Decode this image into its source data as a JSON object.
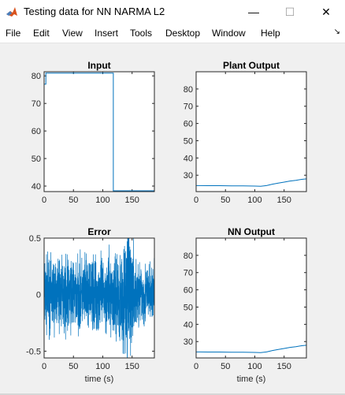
{
  "window": {
    "title": "Testing data for NN NARMA L2",
    "controls": {
      "minimize": "—",
      "maximize": "☐",
      "close": "✕"
    }
  },
  "menu": [
    "File",
    "Edit",
    "View",
    "Insert",
    "Tools",
    "Desktop",
    "Window",
    "Help"
  ],
  "colors": {
    "line": "#0072bd",
    "axes_bg": "#ffffff",
    "figure_bg": "#f0f0f0"
  },
  "chart_data": [
    {
      "type": "line",
      "title": "Input",
      "xlabel": "",
      "ylabel": "",
      "xlim": [
        0,
        188
      ],
      "ylim": [
        38,
        81.5
      ],
      "xticks": [
        0,
        50,
        100,
        150
      ],
      "yticks": [
        40,
        50,
        60,
        70,
        80
      ],
      "series": [
        {
          "x": [
            0,
            3,
            3,
            118,
            118,
            188
          ],
          "y": [
            77,
            77,
            81,
            81,
            38.3,
            38.3
          ]
        }
      ]
    },
    {
      "type": "line",
      "title": "Plant Output",
      "xlabel": "",
      "ylabel": "",
      "xlim": [
        0,
        188
      ],
      "ylim": [
        20.5,
        90
      ],
      "xticks": [
        0,
        50,
        100,
        150
      ],
      "yticks": [
        30,
        40,
        50,
        60,
        70,
        80
      ],
      "series": [
        {
          "x": [
            0,
            20,
            40,
            60,
            80,
            100,
            110,
            120,
            130,
            140,
            150,
            160,
            170,
            180,
            188
          ],
          "y": [
            24,
            23.9,
            23.9,
            23.8,
            23.8,
            23.7,
            23.6,
            24,
            24.8,
            25.4,
            26,
            26.6,
            27,
            27.6,
            27.9
          ]
        }
      ]
    },
    {
      "type": "line",
      "title": "Error",
      "xlabel": "time (s)",
      "ylabel": "",
      "xlim": [
        0,
        188
      ],
      "ylim": [
        -0.56,
        0.5
      ],
      "xticks": [
        0,
        50,
        100,
        150
      ],
      "yticks": [
        -0.5,
        0,
        0.5
      ],
      "series": [
        {
          "noise": true,
          "envelope_x": [
            0,
            100,
            120,
            140,
            145,
            150,
            160,
            188
          ],
          "envelope_amp": [
            0.22,
            0.22,
            0.24,
            0.35,
            0.5,
            0.3,
            0.2,
            0.17
          ]
        }
      ]
    },
    {
      "type": "line",
      "title": "NN Output",
      "xlabel": "time (s)",
      "ylabel": "",
      "xlim": [
        0,
        188
      ],
      "ylim": [
        20.5,
        90
      ],
      "xticks": [
        0,
        50,
        100,
        150
      ],
      "yticks": [
        30,
        40,
        50,
        60,
        70,
        80
      ],
      "series": [
        {
          "x": [
            0,
            20,
            40,
            60,
            80,
            100,
            110,
            120,
            130,
            140,
            150,
            160,
            170,
            180,
            188
          ],
          "y": [
            24,
            23.9,
            23.9,
            23.8,
            23.8,
            23.7,
            23.6,
            24,
            24.8,
            25.4,
            26,
            26.6,
            27,
            27.6,
            27.9
          ]
        }
      ]
    }
  ]
}
